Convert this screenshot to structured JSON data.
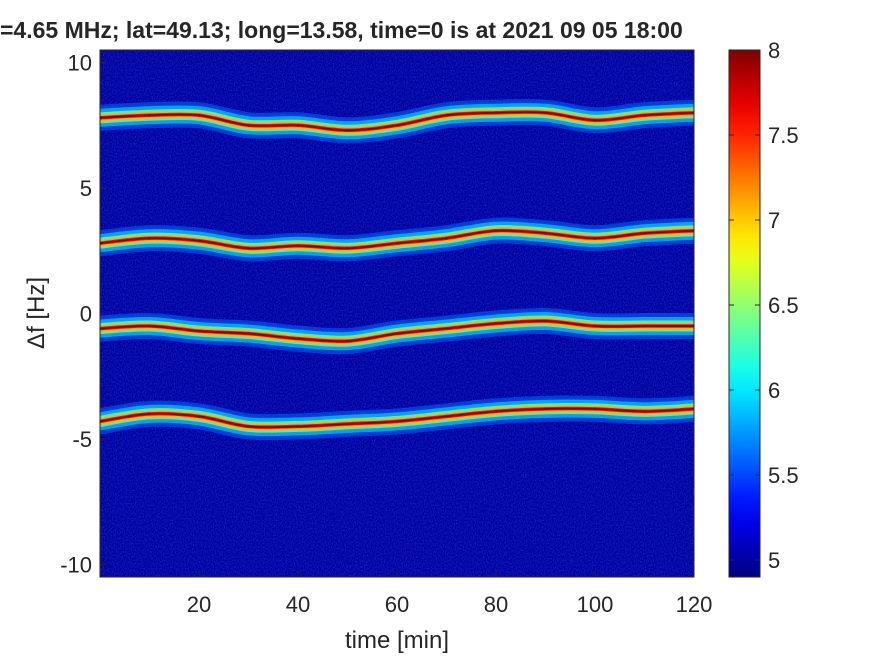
{
  "chart_data": {
    "type": "heatmap",
    "title": "=4.65 MHz;  lat=49.13; long=13.58, time=0 is at 2021 09 05 18:00",
    "xlabel": "time [min]",
    "ylabel": "Δf [Hz]",
    "xlim": [
      0,
      120
    ],
    "ylim": [
      -10.5,
      10.5
    ],
    "xticks": [
      20,
      40,
      60,
      80,
      100,
      120
    ],
    "yticks": [
      -10,
      -5,
      0,
      5,
      10
    ],
    "colorbar": {
      "colormap": "jet",
      "range": [
        4.9,
        8
      ],
      "ticks": [
        5,
        5.5,
        6,
        6.5,
        7,
        7.5,
        8
      ]
    },
    "background_value": 5.0,
    "series": [
      {
        "x": [
          0,
          10,
          20,
          30,
          40,
          50,
          60,
          70,
          80,
          90,
          100,
          110,
          120
        ],
        "y": [
          7.8,
          7.9,
          7.9,
          7.5,
          7.5,
          7.3,
          7.5,
          7.9,
          8.0,
          8.0,
          7.7,
          7.9,
          8.0
        ]
      },
      {
        "x": [
          0,
          10,
          20,
          30,
          40,
          50,
          60,
          70,
          80,
          90,
          100,
          110,
          120
        ],
        "y": [
          2.8,
          3.0,
          2.9,
          2.6,
          2.7,
          2.6,
          2.8,
          3.0,
          3.3,
          3.2,
          3.0,
          3.2,
          3.3
        ]
      },
      {
        "x": [
          0,
          10,
          20,
          30,
          40,
          50,
          60,
          70,
          80,
          90,
          100,
          110,
          120
        ],
        "y": [
          -0.6,
          -0.5,
          -0.7,
          -0.8,
          -1.0,
          -1.1,
          -0.8,
          -0.6,
          -0.4,
          -0.3,
          -0.5,
          -0.5,
          -0.5
        ]
      },
      {
        "x": [
          0,
          10,
          20,
          30,
          40,
          50,
          60,
          70,
          80,
          90,
          100,
          110,
          120
        ],
        "y": [
          -4.3,
          -4.0,
          -4.1,
          -4.5,
          -4.5,
          -4.4,
          -4.3,
          -4.1,
          -3.9,
          -3.8,
          -3.8,
          -3.9,
          -3.8
        ]
      }
    ]
  }
}
